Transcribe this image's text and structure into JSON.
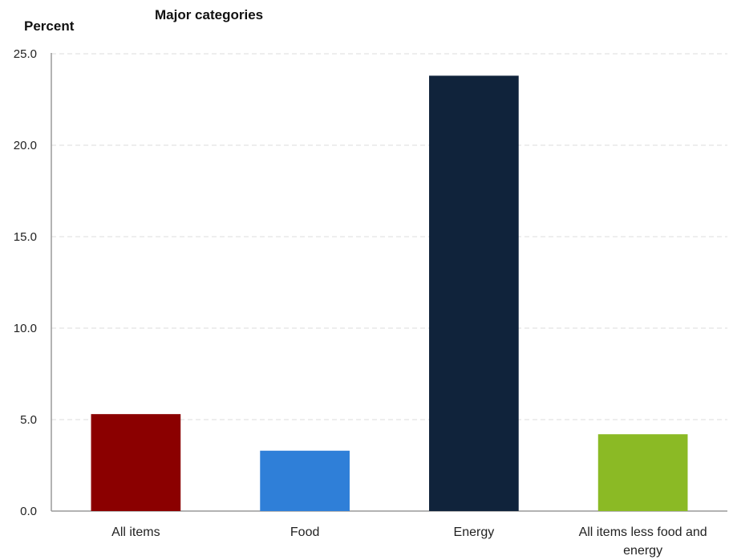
{
  "chart_data": {
    "type": "bar",
    "title": "Major categories",
    "ylabel": "Percent",
    "xlabel": "",
    "ylim": [
      0,
      25
    ],
    "yticks": [
      "0.0",
      "5.0",
      "10.0",
      "15.0",
      "20.0",
      "25.0"
    ],
    "ytick_values": [
      0,
      5,
      10,
      15,
      20,
      25
    ],
    "grid": true,
    "categories": [
      "All items",
      "Food",
      "Energy",
      "All items less food and energy"
    ],
    "category_lines": [
      [
        "All items"
      ],
      [
        "Food"
      ],
      [
        "Energy"
      ],
      [
        "All items less food and",
        "energy"
      ]
    ],
    "values": [
      5.3,
      3.3,
      23.8,
      4.2
    ],
    "colors": [
      "#8b0000",
      "#2f7fd8",
      "#10233b",
      "#8bba25"
    ]
  }
}
